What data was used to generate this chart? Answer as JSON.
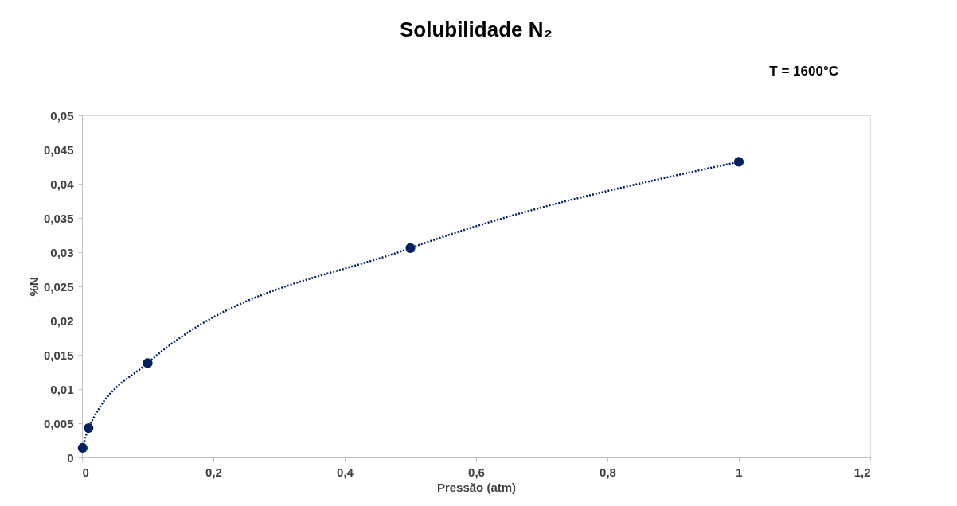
{
  "chart_data": {
    "type": "line",
    "title": "Solubilidade N₂",
    "xlabel": "Pressão (atm)",
    "ylabel": "%N",
    "annotations": [
      "T = 1600°C"
    ],
    "x": [
      0.001,
      0.01,
      0.1,
      0.5,
      1
    ],
    "series": [
      {
        "color": "#002060",
        "values": [
          0.0014,
          0.0043,
          0.0138,
          0.0306,
          0.0432
        ]
      }
    ],
    "marker": "circle",
    "line_style": "dotted",
    "grid": false,
    "xlim": [
      0,
      1.2
    ],
    "ylim": [
      0,
      0.05
    ],
    "xticks": [
      0,
      {
        "value": 0.2,
        "label": "0,2"
      },
      {
        "value": 0.4,
        "label": "0,4"
      },
      {
        "value": 0.6,
        "label": "0,6"
      },
      {
        "value": 0.8,
        "label": "0,8"
      },
      1,
      {
        "value": 1.2,
        "label": "1,2"
      }
    ],
    "yticks": [
      0,
      {
        "value": 0.005,
        "label": "0,005"
      },
      {
        "value": 0.01,
        "label": "0,01"
      },
      {
        "value": 0.015,
        "label": "0,015"
      },
      {
        "value": 0.02,
        "label": "0,02"
      },
      {
        "value": 0.025,
        "label": "0,025"
      },
      {
        "value": 0.03,
        "label": "0,03"
      },
      {
        "value": 0.035,
        "label": "0,035"
      },
      {
        "value": 0.04,
        "label": "0,04"
      },
      {
        "value": 0.045,
        "label": "0,045"
      },
      {
        "value": 0.05,
        "label": "0,05"
      }
    ]
  }
}
